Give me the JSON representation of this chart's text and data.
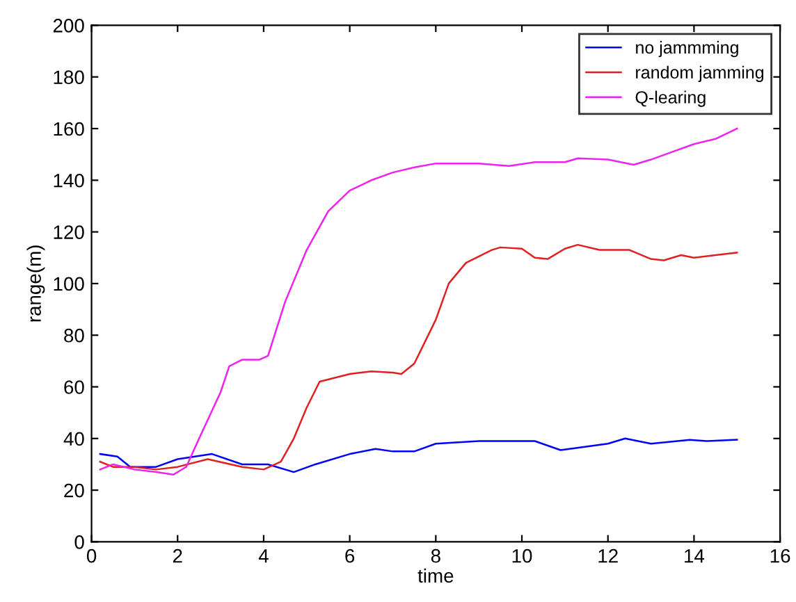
{
  "chart_data": {
    "type": "line",
    "xlabel": "time",
    "ylabel": "range(m)",
    "xlim": [
      0,
      16
    ],
    "ylim": [
      0,
      200
    ],
    "xticks": [
      0,
      2,
      4,
      6,
      8,
      10,
      12,
      14,
      16
    ],
    "yticks": [
      0,
      20,
      40,
      60,
      80,
      100,
      120,
      140,
      160,
      180,
      200
    ],
    "grid": false,
    "legend": "top right",
    "line_style": "solid",
    "marker": "none",
    "series": [
      {
        "name": "no jammming",
        "color": "#0000ff",
        "x": [
          0.2,
          0.6,
          0.9,
          1.5,
          2,
          2.8,
          3.5,
          4.1,
          4.7,
          5.2,
          6,
          6.6,
          7,
          7.5,
          8,
          9,
          10,
          10.3,
          10.9,
          12,
          12.4,
          13,
          13.9,
          14.3,
          15
        ],
        "values": [
          34,
          33,
          29,
          29,
          32,
          34,
          30,
          30,
          27,
          30,
          34,
          36,
          35,
          35,
          38,
          39,
          39,
          39,
          35.5,
          38,
          40,
          38,
          39.5,
          39,
          39.5
        ]
      },
      {
        "name": "random jamming",
        "color": "#e02020",
        "x": [
          0.2,
          0.5,
          1,
          1.5,
          2,
          2.7,
          3.5,
          4,
          4.4,
          4.7,
          5,
          5.3,
          6,
          6.5,
          7,
          7.2,
          7.5,
          8,
          8.3,
          8.7,
          9.3,
          9.5,
          10,
          10.3,
          10.6,
          11,
          11.3,
          11.8,
          12.5,
          13,
          13.3,
          13.7,
          14,
          14.5,
          15
        ],
        "values": [
          31,
          29,
          29,
          28,
          29,
          32,
          29,
          28,
          31,
          40,
          52,
          62,
          65,
          66,
          65.5,
          65,
          69,
          86,
          100,
          108,
          113,
          114,
          113.5,
          110,
          109.5,
          113.5,
          115,
          113,
          113,
          109.5,
          109,
          111,
          110,
          111,
          112
        ]
      },
      {
        "name": "Q-learing",
        "color": "#ee22ee",
        "x": [
          0.2,
          0.5,
          1,
          1.5,
          1.9,
          2.2,
          2.5,
          3,
          3.2,
          3.5,
          3.9,
          4.1,
          4.5,
          5,
          5.5,
          6,
          6.5,
          7,
          7.5,
          8,
          8.5,
          9,
          9.7,
          10.3,
          11,
          11.3,
          12,
          12.6,
          13,
          13.5,
          14,
          14.5,
          15
        ],
        "values": [
          28,
          30,
          28,
          27,
          26,
          29,
          40,
          58,
          68,
          70.5,
          70.5,
          72,
          93,
          113,
          128,
          136,
          140,
          143,
          145,
          146.5,
          146.5,
          146.5,
          145.5,
          147,
          147,
          148.5,
          148,
          146,
          148,
          151,
          154,
          156,
          160
        ]
      }
    ]
  }
}
